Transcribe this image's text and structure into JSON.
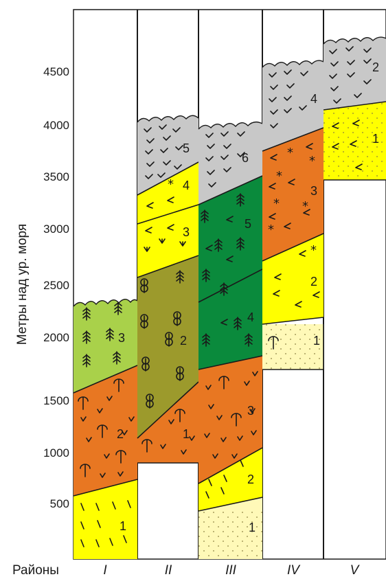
{
  "axis": {
    "ylabel": "Метры над ур. моря",
    "ticks": [
      "500",
      "1000",
      "1500",
      "2000",
      "2500",
      "3000",
      "3500",
      "4000",
      "4500"
    ]
  },
  "districts": {
    "label": "Районы",
    "names": [
      "I",
      "II",
      "III",
      "IV",
      "V"
    ]
  },
  "zone_numbers": {
    "I": [
      "1",
      "2",
      "3"
    ],
    "II": [
      "1",
      "2",
      "3",
      "4",
      "5"
    ],
    "III": [
      "1",
      "2",
      "3",
      "4",
      "5",
      "6"
    ],
    "IV": [
      "1",
      "2",
      "3",
      "4"
    ],
    "V": [
      "1",
      "2"
    ]
  },
  "colors": {
    "yellow": "#ffff00",
    "pale_yellow": "#fff9b8",
    "orange": "#e87722",
    "olive": "#9c9a2c",
    "dark_green": "#0a8a3c",
    "light_green": "#a9d14a",
    "grey": "#c8c8c8",
    "line": "#1a1a1a"
  },
  "legend_symbols": [
    "tick-grass-icon",
    "fir-tree-icon",
    "deciduous-tree-icon",
    "phi-shrub-icon",
    "star-icon",
    "dots-icon",
    "glacier-icon"
  ]
}
